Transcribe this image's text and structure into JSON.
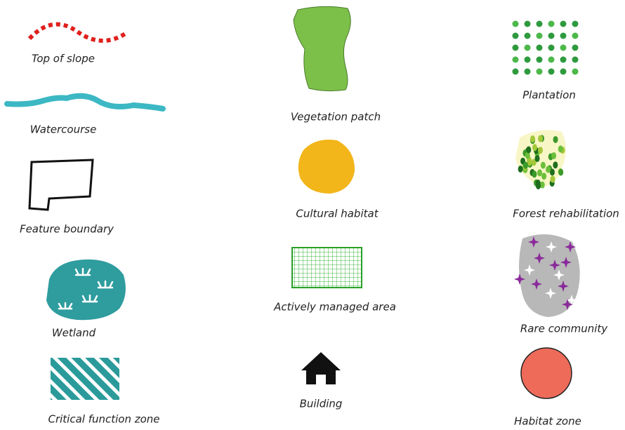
{
  "items": [
    {
      "label": "Top of slope"
    },
    {
      "label": "Watercourse"
    },
    {
      "label": "Feature boundary"
    },
    {
      "label": "Wetland"
    },
    {
      "label": "Critical function zone"
    },
    {
      "label": "Vegetation patch"
    },
    {
      "label": "Cultural habitat"
    },
    {
      "label": "Actively managed area"
    },
    {
      "label": "Building"
    },
    {
      "label": "Plantation"
    },
    {
      "label": "Forest rehabilitation"
    },
    {
      "label": "Rare community"
    },
    {
      "label": "Habitat zone"
    }
  ]
}
